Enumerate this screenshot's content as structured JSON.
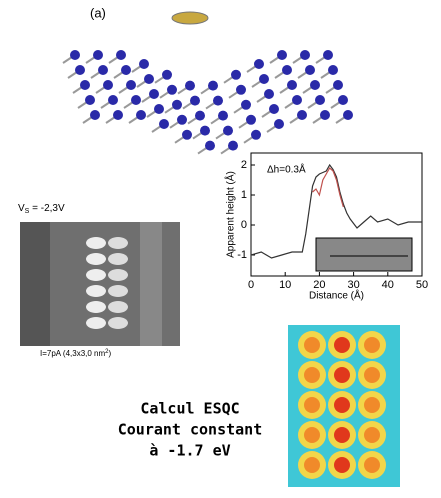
{
  "figure_label": "(a)",
  "vs_label": {
    "main": "V",
    "sub": "S",
    "rest": " = -2,3V"
  },
  "stm_caption": {
    "main": "I=7pA (4,3x3,0 nm",
    "sup": "2",
    "end": ")"
  },
  "calc_text": [
    "Calcul ESQC",
    "Courant constant",
    "à -1.7 eV"
  ],
  "chart_data": {
    "type": "line",
    "annotation": "Δh=0.3Å",
    "x_label": "Distance (Å)",
    "y_label": "Apparent height (Å)",
    "x": [
      0,
      3,
      6,
      9,
      12,
      15,
      16,
      17,
      18,
      19,
      20,
      21,
      22,
      23,
      24,
      25,
      26,
      27,
      28,
      29,
      31,
      33,
      35,
      37,
      40,
      43,
      46,
      50
    ],
    "series": [
      {
        "color": "#333333",
        "values": [
          -1,
          -0.9,
          -1.1,
          -1,
          -0.9,
          -0.9,
          -0.3,
          0.5,
          1.3,
          1.6,
          1.7,
          1.75,
          1.8,
          2.0,
          1.85,
          1.6,
          1.1,
          0.7,
          0.4,
          0.2,
          -0.1,
          0.1,
          0.3,
          0.1,
          0.2,
          0,
          0.1,
          0.1
        ]
      },
      {
        "color": "#c0504d",
        "values": [
          null,
          null,
          null,
          null,
          null,
          null,
          null,
          null,
          1.1,
          1.2,
          1.0,
          1.5,
          1.7,
          1.9,
          1.8,
          1.5,
          1.0,
          0.6,
          null,
          null,
          null,
          null,
          null,
          null,
          null,
          null,
          null,
          null
        ]
      }
    ],
    "xlim": [
      0,
      50
    ],
    "ylim": [
      -1.7,
      2.4
    ],
    "xticks": [
      0,
      10,
      20,
      30,
      40,
      50
    ],
    "yticks": [
      -1,
      0,
      1,
      2
    ]
  }
}
